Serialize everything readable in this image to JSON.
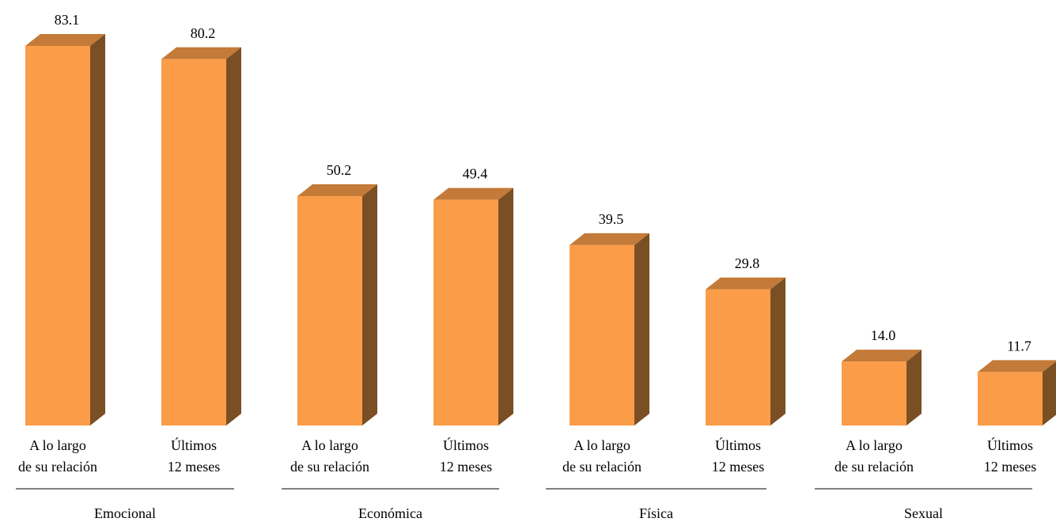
{
  "chart_data": {
    "type": "bar",
    "style": "3d-column",
    "groups": [
      {
        "name": "Emocional",
        "bars": [
          {
            "label_lines": [
              "A lo largo",
              "de su relación"
            ],
            "value": 83.1,
            "label": "83.1"
          },
          {
            "label_lines": [
              "Últimos",
              "12 meses"
            ],
            "value": 80.2,
            "label": "80.2"
          }
        ]
      },
      {
        "name": "Económica",
        "bars": [
          {
            "label_lines": [
              "A lo largo",
              "de su relación"
            ],
            "value": 50.2,
            "label": "50.2"
          },
          {
            "label_lines": [
              "Últimos",
              "12 meses"
            ],
            "value": 49.4,
            "label": "49.4"
          }
        ]
      },
      {
        "name": "Física",
        "bars": [
          {
            "label_lines": [
              "A lo largo",
              "de su relación"
            ],
            "value": 39.5,
            "label": "39.5"
          },
          {
            "label_lines": [
              "Últimos",
              "12 meses"
            ],
            "value": 29.8,
            "label": "29.8"
          }
        ]
      },
      {
        "name": "Sexual",
        "bars": [
          {
            "label_lines": [
              "A lo largo",
              "de su relación"
            ],
            "value": 14.0,
            "label": "14.0"
          },
          {
            "label_lines": [
              "Últimos",
              "12 meses"
            ],
            "value": 11.7,
            "label": "11.7"
          }
        ]
      }
    ],
    "ylim": [
      0,
      83.1
    ],
    "grid": false,
    "legend": "none",
    "colors": {
      "front": "#FB9C48",
      "top": "#C47A38",
      "side": "#7B4F24"
    }
  }
}
